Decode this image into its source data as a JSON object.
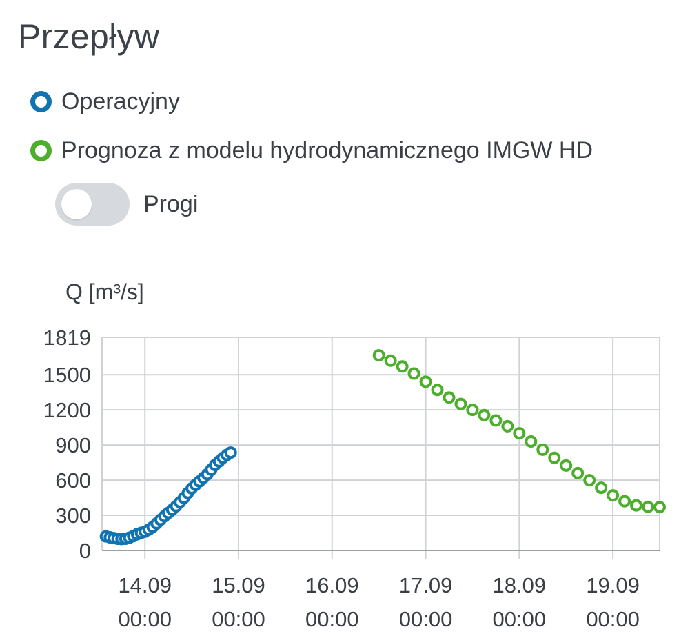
{
  "title": "Przepływ",
  "legend": [
    {
      "label": "Operacyjny",
      "color": "#1173b0"
    },
    {
      "label": "Prognoza z modelu hydrodynamicznego IMGW HD",
      "color": "#4cae2c"
    }
  ],
  "toggle": {
    "label": "Progi",
    "on": false
  },
  "chart_data": {
    "type": "scatter",
    "ylabel": "Q [m³/s]",
    "xlabel": "",
    "ylim": [
      0,
      1819
    ],
    "yticks": [
      0,
      300,
      600,
      900,
      1200,
      1500,
      1819
    ],
    "xlim": [
      "2024-09-13 13:00",
      "2024-09-19 12:00"
    ],
    "xticks": [
      {
        "x": "2024-09-14 00:00",
        "date": "14.09",
        "time": "00:00"
      },
      {
        "x": "2024-09-15 00:00",
        "date": "15.09",
        "time": "00:00"
      },
      {
        "x": "2024-09-16 00:00",
        "date": "16.09",
        "time": "00:00"
      },
      {
        "x": "2024-09-17 00:00",
        "date": "17.09",
        "time": "00:00"
      },
      {
        "x": "2024-09-18 00:00",
        "date": "18.09",
        "time": "00:00"
      },
      {
        "x": "2024-09-19 00:00",
        "date": "19.09",
        "time": "00:00"
      }
    ],
    "grid": true,
    "series": [
      {
        "name": "Operacyjny",
        "color": "#1173b0",
        "points": [
          [
            "2024-09-13 14:00",
            120
          ],
          [
            "2024-09-13 15:00",
            112
          ],
          [
            "2024-09-13 16:00",
            105
          ],
          [
            "2024-09-13 17:00",
            100
          ],
          [
            "2024-09-13 18:00",
            98
          ],
          [
            "2024-09-13 19:00",
            100
          ],
          [
            "2024-09-13 20:00",
            108
          ],
          [
            "2024-09-13 21:00",
            122
          ],
          [
            "2024-09-13 22:00",
            138
          ],
          [
            "2024-09-13 23:00",
            150
          ],
          [
            "2024-09-14 00:00",
            160
          ],
          [
            "2024-09-14 01:00",
            178
          ],
          [
            "2024-09-14 02:00",
            200
          ],
          [
            "2024-09-14 03:00",
            230
          ],
          [
            "2024-09-14 04:00",
            262
          ],
          [
            "2024-09-14 05:00",
            292
          ],
          [
            "2024-09-14 06:00",
            320
          ],
          [
            "2024-09-14 07:00",
            348
          ],
          [
            "2024-09-14 08:00",
            378
          ],
          [
            "2024-09-14 09:00",
            412
          ],
          [
            "2024-09-14 10:00",
            448
          ],
          [
            "2024-09-14 11:00",
            490
          ],
          [
            "2024-09-14 12:00",
            530
          ],
          [
            "2024-09-14 13:00",
            560
          ],
          [
            "2024-09-14 14:00",
            590
          ],
          [
            "2024-09-14 15:00",
            620
          ],
          [
            "2024-09-14 16:00",
            650
          ],
          [
            "2024-09-14 17:00",
            690
          ],
          [
            "2024-09-14 18:00",
            730
          ],
          [
            "2024-09-14 19:00",
            760
          ],
          [
            "2024-09-14 20:00",
            790
          ],
          [
            "2024-09-14 21:00",
            815
          ],
          [
            "2024-09-14 22:00",
            835
          ]
        ]
      },
      {
        "name": "Prognoza z modelu hydrodynamicznego IMGW HD",
        "color": "#4cae2c",
        "points": [
          [
            "2024-09-16 12:00",
            1665
          ],
          [
            "2024-09-16 15:00",
            1620
          ],
          [
            "2024-09-16 18:00",
            1570
          ],
          [
            "2024-09-16 21:00",
            1510
          ],
          [
            "2024-09-17 00:00",
            1440
          ],
          [
            "2024-09-17 03:00",
            1370
          ],
          [
            "2024-09-17 06:00",
            1305
          ],
          [
            "2024-09-17 09:00",
            1250
          ],
          [
            "2024-09-17 12:00",
            1200
          ],
          [
            "2024-09-17 15:00",
            1155
          ],
          [
            "2024-09-17 18:00",
            1110
          ],
          [
            "2024-09-17 21:00",
            1060
          ],
          [
            "2024-09-18 00:00",
            1000
          ],
          [
            "2024-09-18 03:00",
            930
          ],
          [
            "2024-09-18 06:00",
            860
          ],
          [
            "2024-09-18 09:00",
            790
          ],
          [
            "2024-09-18 12:00",
            725
          ],
          [
            "2024-09-18 15:00",
            660
          ],
          [
            "2024-09-18 18:00",
            600
          ],
          [
            "2024-09-18 21:00",
            535
          ],
          [
            "2024-09-19 00:00",
            470
          ],
          [
            "2024-09-19 03:00",
            420
          ],
          [
            "2024-09-19 06:00",
            385
          ],
          [
            "2024-09-19 09:00",
            372
          ],
          [
            "2024-09-19 12:00",
            370
          ]
        ]
      }
    ]
  }
}
